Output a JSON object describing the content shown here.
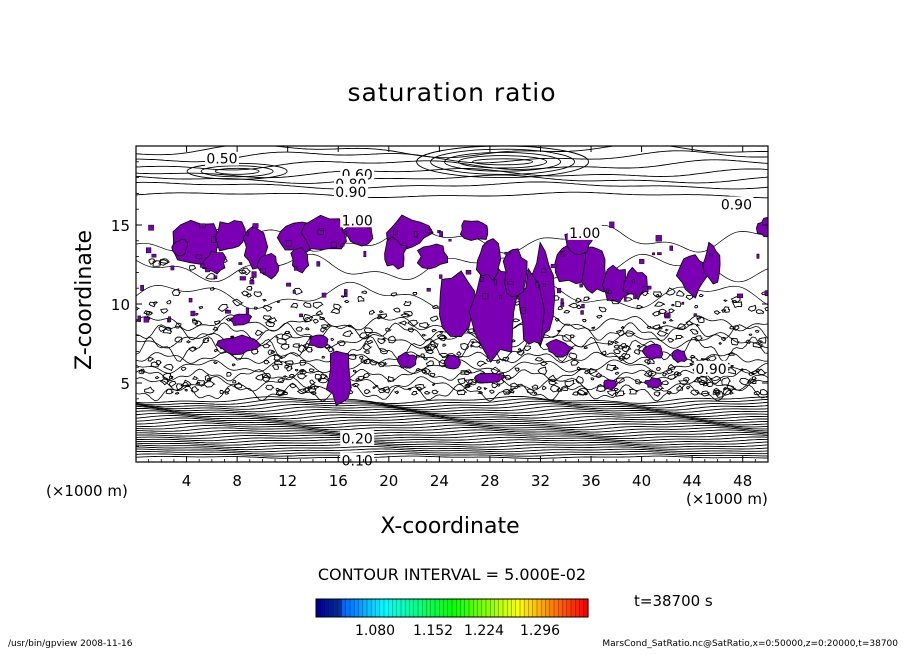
{
  "chart_data": {
    "type": "contour",
    "title": "saturation ratio",
    "xlabel": "X-coordinate",
    "ylabel": "Z-coordinate",
    "x_unit": "(×1000 m)",
    "y_unit": "(×1000 m)",
    "xlim": [
      0,
      50
    ],
    "ylim": [
      0,
      20
    ],
    "x_ticks": [
      4,
      8,
      12,
      16,
      20,
      24,
      28,
      32,
      36,
      40,
      44,
      48
    ],
    "y_ticks": [
      5,
      10,
      15
    ],
    "contour_labels": [
      {
        "text": "0.50",
        "x": 6.8,
        "z": 19.2
      },
      {
        "text": "0.60",
        "x": 17.5,
        "z": 18.2
      },
      {
        "text": "0.80",
        "x": 17.0,
        "z": 17.6
      },
      {
        "text": "0.90",
        "x": 17.0,
        "z": 17.1
      },
      {
        "text": "0.90",
        "x": 47.5,
        "z": 16.3
      },
      {
        "text": "1.00",
        "x": 17.5,
        "z": 15.3
      },
      {
        "text": "1.00",
        "x": 35.5,
        "z": 14.5
      },
      {
        "text": "0.90",
        "x": 45.5,
        "z": 5.9
      },
      {
        "text": "0.20",
        "x": 17.5,
        "z": 1.5
      },
      {
        "text": "0.10",
        "x": 17.5,
        "z": 0.1
      }
    ],
    "filled_regions_color": "#7b00b4",
    "contour_interval": "CONTOUR INTERVAL = 5.000E-02",
    "time_label": "t=38700 s",
    "colorbar_ticks": [
      "1.080",
      "1.152",
      "1.224",
      "1.296"
    ]
  },
  "footer": {
    "left": "/usr/bin/gpview  2008-11-16",
    "right": "MarsCond_SatRatio.nc@SatRatio,x=0:50000,z=0:20000,t=38700"
  }
}
